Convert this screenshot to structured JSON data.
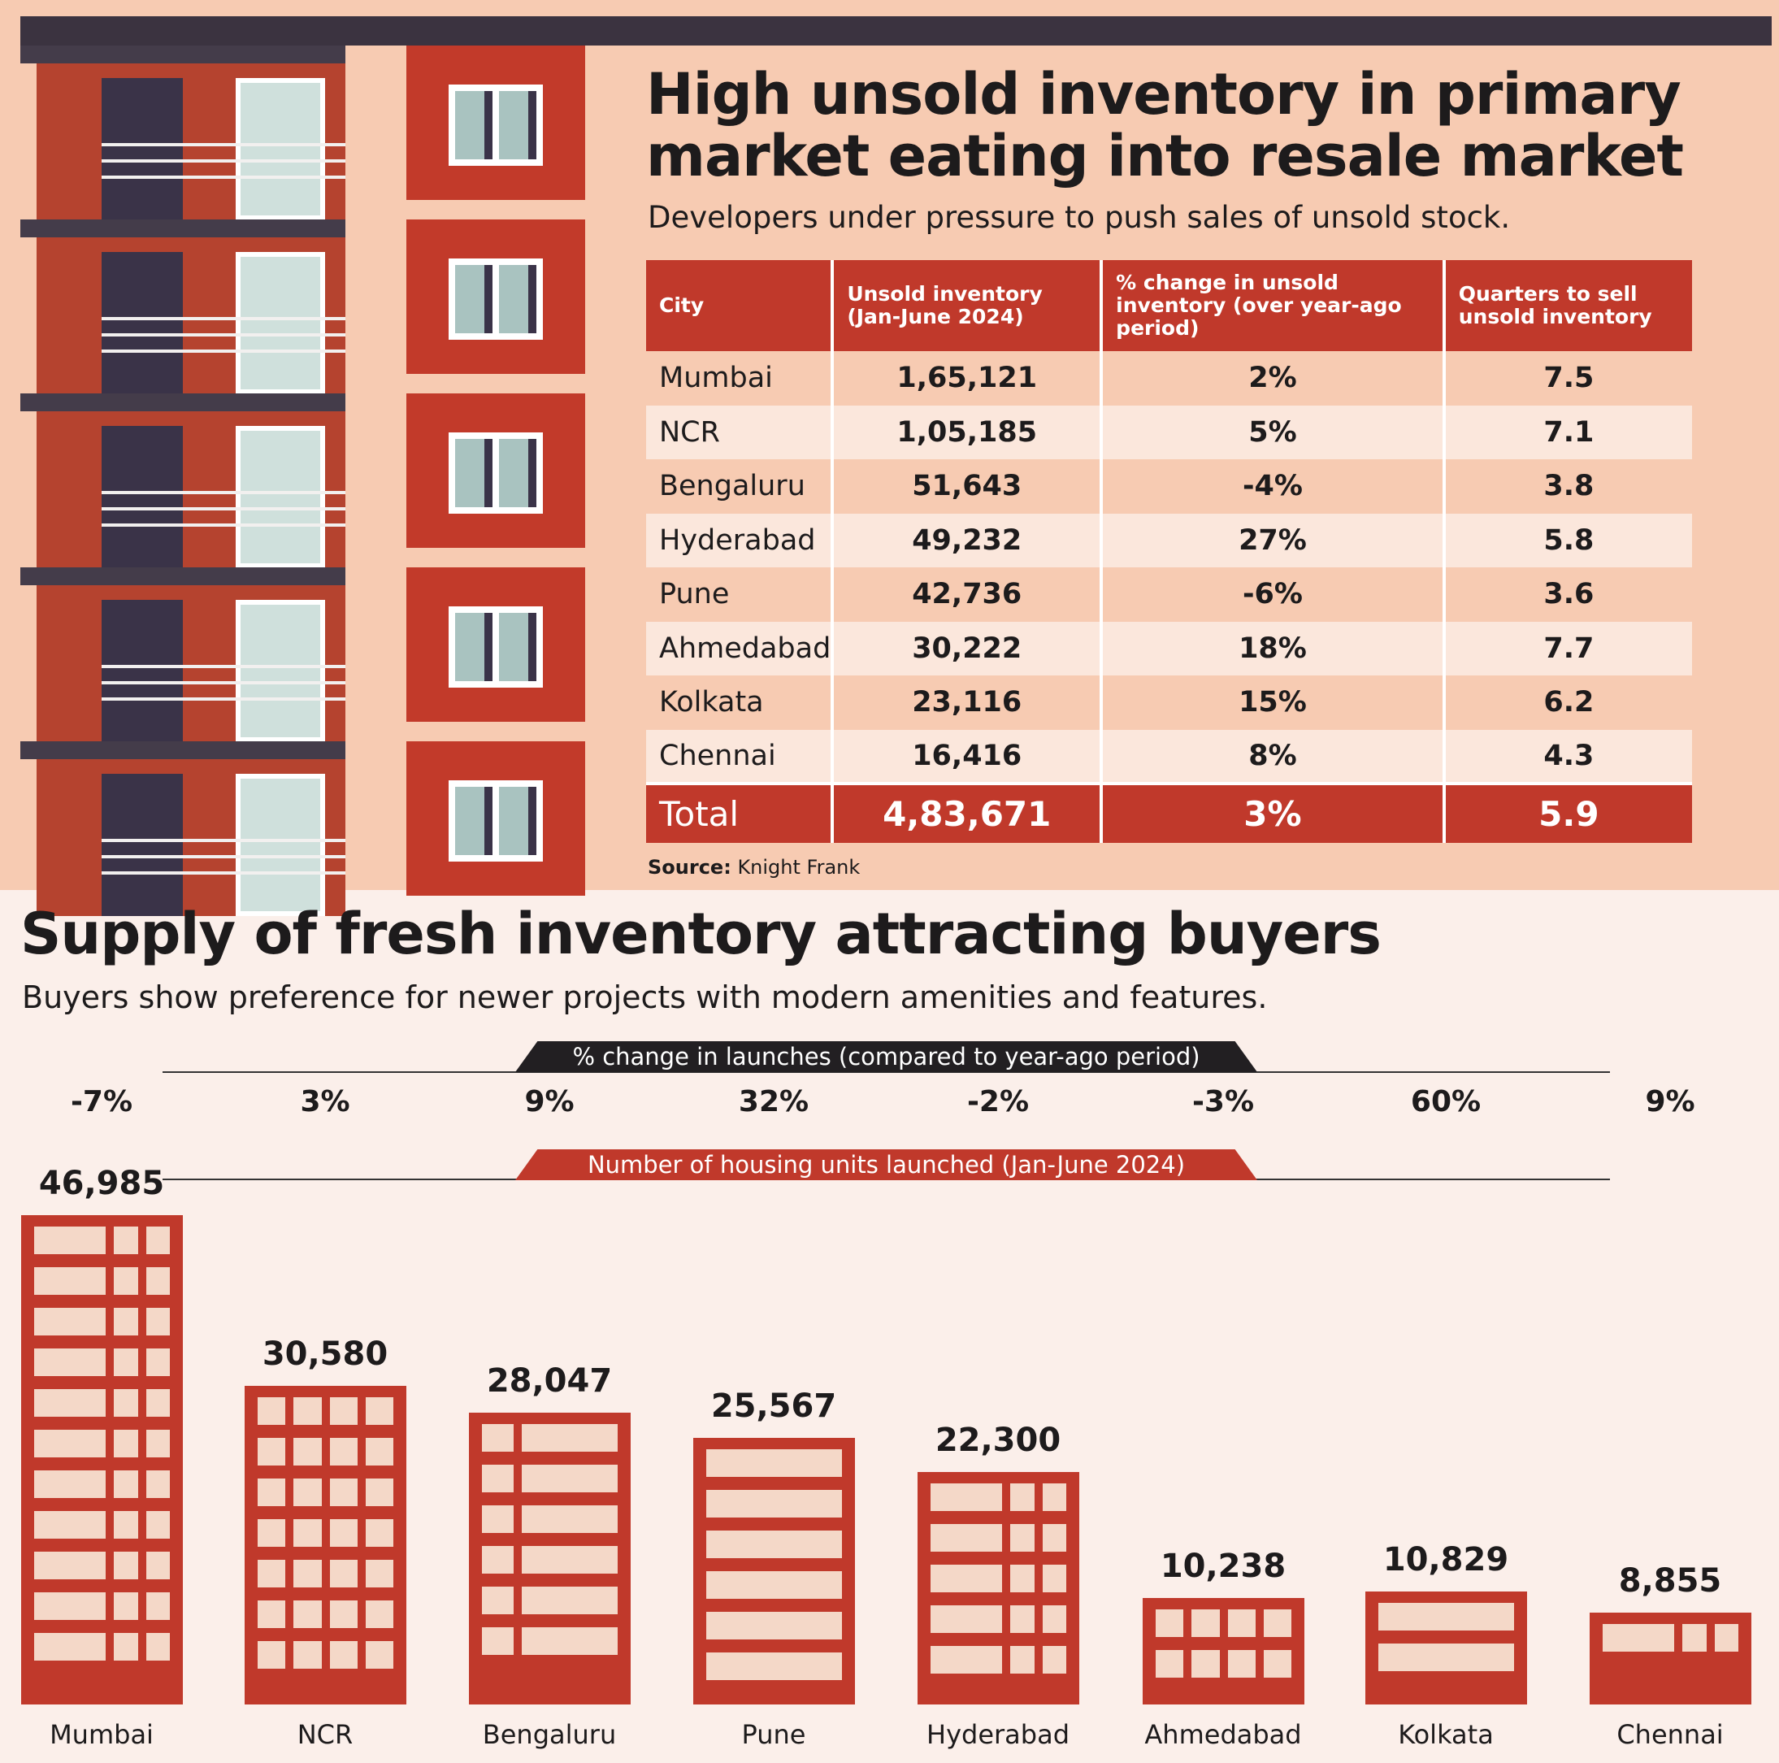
{
  "top": {
    "title_line1": "High unsold inventory in primary",
    "title_line2": "market eating into resale market",
    "subtitle": "Developers under pressure to push sales of unsold stock.",
    "source_label": "Source:",
    "source": "Knight Frank"
  },
  "table": {
    "headers": [
      "City",
      "Unsold inventory (Jan-June 2024)",
      "% change in unsold inventory (over year-ago period)",
      "Quarters to sell unsold inventory"
    ],
    "rows": [
      [
        "Mumbai",
        "1,65,121",
        "2%",
        "7.5"
      ],
      [
        "NCR",
        "1,05,185",
        "5%",
        "7.1"
      ],
      [
        "Bengaluru",
        "51,643",
        "-4%",
        "3.8"
      ],
      [
        "Hyderabad",
        "49,232",
        "27%",
        "5.8"
      ],
      [
        "Pune",
        "42,736",
        "-6%",
        "3.6"
      ],
      [
        "Ahmedabad",
        "30,222",
        "18%",
        "7.7"
      ],
      [
        "Kolkata",
        "23,116",
        "15%",
        "6.2"
      ],
      [
        "Chennai",
        "16,416",
        "8%",
        "4.3"
      ]
    ],
    "total": [
      "Total",
      "4,83,671",
      "3%",
      "5.9"
    ]
  },
  "bottom": {
    "title": "Supply of fresh inventory attracting buyers",
    "subtitle": "Buyers show preference for newer projects with modern amenities and features."
  },
  "chart_data": {
    "type": "bar",
    "title": "Number of housing units launched (Jan-June 2024)",
    "secondary_title": "% change in launches (compared to year-ago period)",
    "categories": [
      "Mumbai",
      "NCR",
      "Bengaluru",
      "Pune",
      "Hyderabad",
      "Ahmedabad",
      "Kolkata",
      "Chennai"
    ],
    "values": [
      46985,
      30580,
      28047,
      25567,
      22300,
      10238,
      10829,
      8855
    ],
    "value_labels": [
      "46,985",
      "30,580",
      "28,047",
      "25,567",
      "22,300",
      "10,238",
      "10,829",
      "8,855"
    ],
    "pct_change": [
      "-7%",
      "3%",
      "9%",
      "32%",
      "-2%",
      "-3%",
      "60%",
      "9%"
    ],
    "ylim": [
      0,
      46985
    ],
    "bar_color": "#c0392b"
  }
}
